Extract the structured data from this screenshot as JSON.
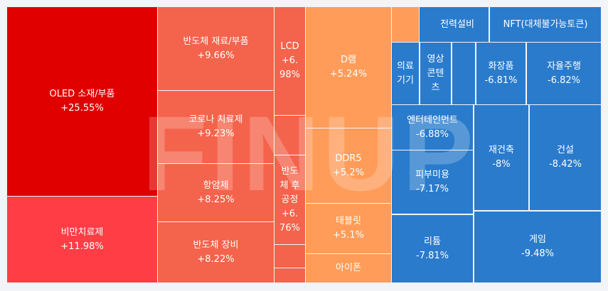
{
  "colors": {
    "red_dark": "#e00000",
    "red": "#ff3d45",
    "coral": "#f4634b",
    "orange": "#ff9c59",
    "blue": "#2a7bcc"
  },
  "watermark": "FINUP",
  "tiles": [
    {
      "name": "OLED 소재/부품",
      "change": "+25.55%",
      "color": "red_dark"
    },
    {
      "name": "비만치료제",
      "change": "+11.98%",
      "color": "red"
    },
    {
      "name": "반도체 재료/부품",
      "change": "+9.66%",
      "color": "coral"
    },
    {
      "name": "코로나 치료제",
      "change": "+9.23%",
      "color": "coral"
    },
    {
      "name": "항암제",
      "change": "+8.25%",
      "color": "coral"
    },
    {
      "name": "반도체 장비",
      "change": "+8.22%",
      "color": "coral"
    },
    {
      "name": "LCD",
      "change": "+6.98%",
      "color": "coral"
    },
    {
      "name": "",
      "change": "",
      "color": "coral"
    },
    {
      "name": "반도체 후공정",
      "change": "+6.76%",
      "color": "coral"
    },
    {
      "name": "",
      "change": "",
      "color": "coral"
    },
    {
      "name": "",
      "change": "",
      "color": "coral"
    },
    {
      "name": "D램",
      "change": "+5.24%",
      "color": "orange"
    },
    {
      "name": "DDR5",
      "change": "+5.2%",
      "color": "orange"
    },
    {
      "name": "태블릿",
      "change": "+5.1%",
      "color": "orange"
    },
    {
      "name": "아이폰",
      "change": "",
      "color": "orange"
    },
    {
      "name": "",
      "change": "",
      "color": "orange"
    },
    {
      "name": "",
      "change": "",
      "color": "blue"
    },
    {
      "name": "전력설비",
      "change": "",
      "color": "blue"
    },
    {
      "name": "NFT(대체불가능토큰)",
      "change": "",
      "color": "blue"
    },
    {
      "name": "의료기기",
      "change": "",
      "color": "blue"
    },
    {
      "name": "영상콘텐츠",
      "change": "",
      "color": "blue"
    },
    {
      "name": "",
      "change": "",
      "color": "blue"
    },
    {
      "name": "화장품",
      "change": "-6.81%",
      "color": "blue"
    },
    {
      "name": "자율주행",
      "change": "-6.82%",
      "color": "blue"
    },
    {
      "name": "엔터테인먼트",
      "change": "-6.88%",
      "color": "blue"
    },
    {
      "name": "피부미용",
      "change": "-7.17%",
      "color": "blue"
    },
    {
      "name": "리튬",
      "change": "-7.81%",
      "color": "blue"
    },
    {
      "name": "재건축",
      "change": "-8%",
      "color": "blue"
    },
    {
      "name": "건설",
      "change": "-8.42%",
      "color": "blue"
    },
    {
      "name": "게임",
      "change": "-9.48%",
      "color": "blue"
    }
  ]
}
